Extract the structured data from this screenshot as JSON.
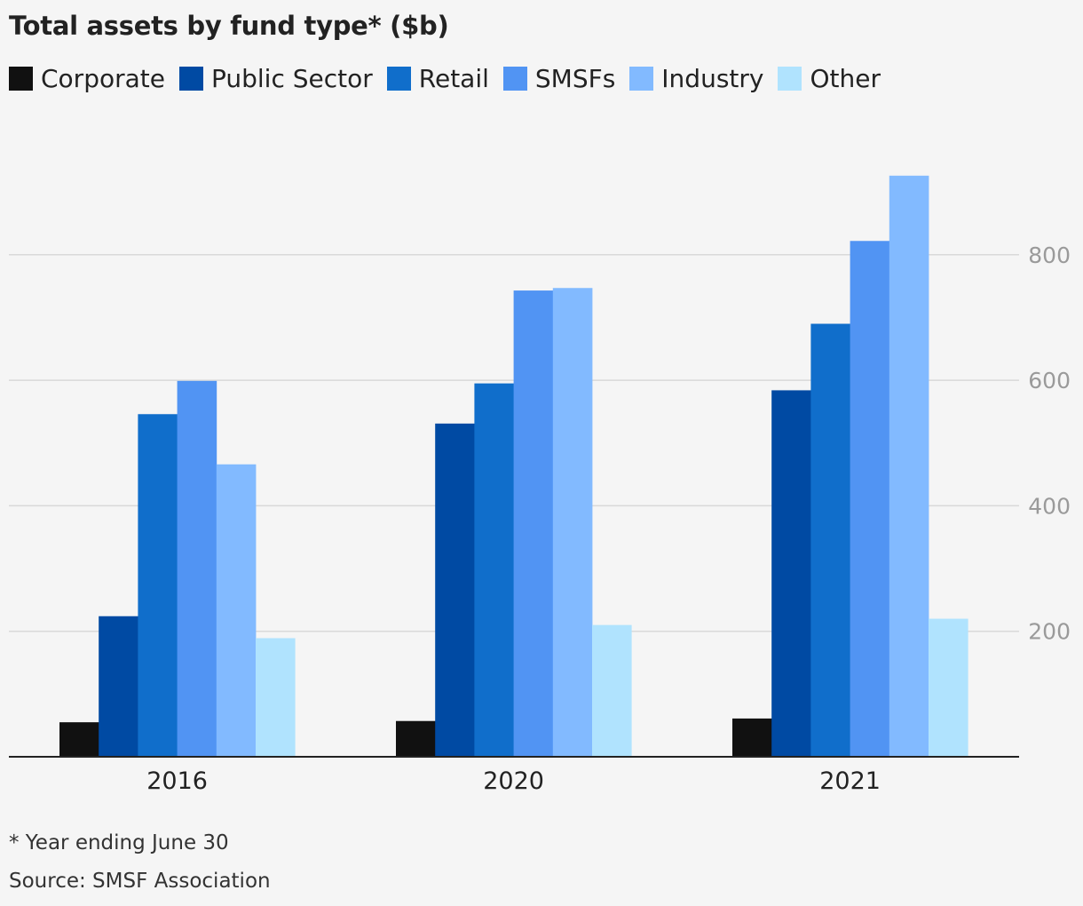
{
  "chart_data": {
    "type": "bar",
    "title": "Total assets by fund type* ($b)",
    "categories": [
      "2016",
      "2020",
      "2021"
    ],
    "series": [
      {
        "name": "Corporate",
        "color": "#111111",
        "values": [
          55,
          57,
          61
        ]
      },
      {
        "name": "Public Sector",
        "color": "#004aa3",
        "values": [
          224,
          531,
          584
        ]
      },
      {
        "name": "Retail",
        "color": "#106ecb",
        "values": [
          546,
          595,
          690
        ]
      },
      {
        "name": "SMSFs",
        "color": "#5194f3",
        "values": [
          599,
          743,
          822
        ]
      },
      {
        "name": "Industry",
        "color": "#82baff",
        "values": [
          466,
          747,
          926
        ]
      },
      {
        "name": "Other",
        "color": "#b0e3fe",
        "values": [
          189,
          210,
          220
        ]
      }
    ],
    "yticks": [
      200,
      400,
      600,
      800
    ],
    "ylim": [
      0,
      950
    ],
    "grid": true,
    "y_axis_side": "right",
    "legend_position": "top-left"
  },
  "footnote": "* Year ending June 30",
  "source": "Source: SMSF Association"
}
